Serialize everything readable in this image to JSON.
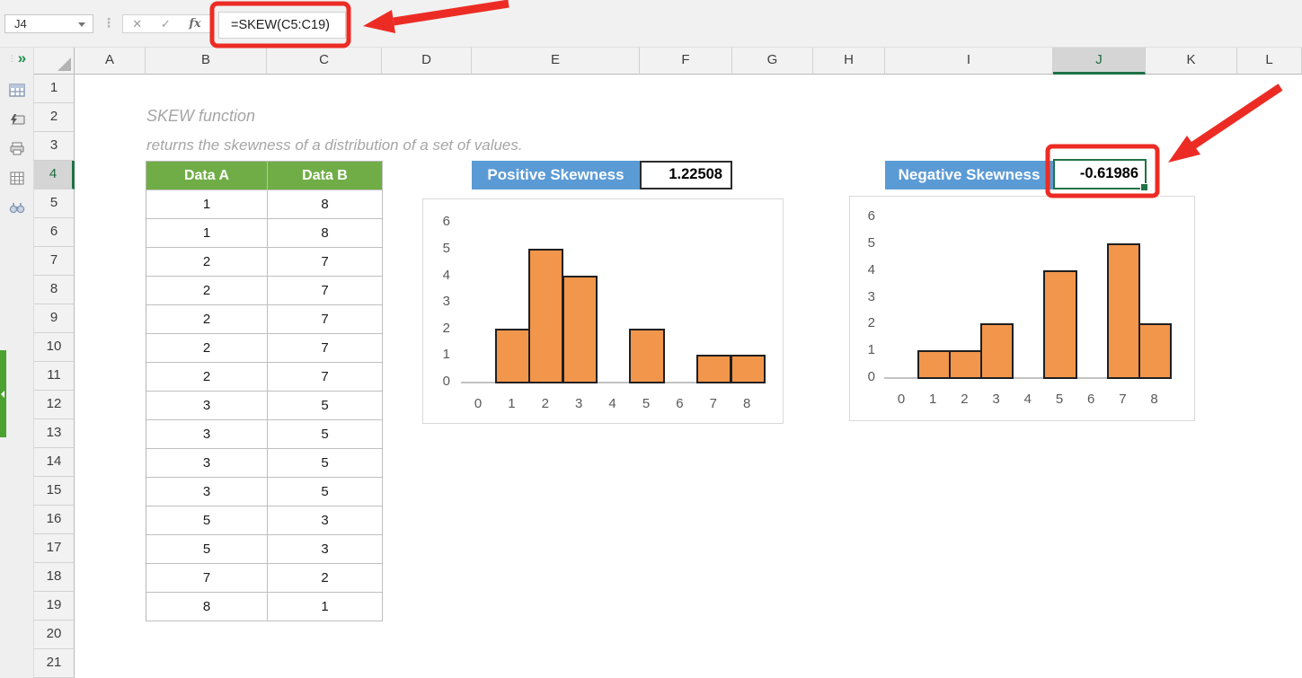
{
  "formula_bar": {
    "name_box_value": "J4",
    "cancel_glyph": "✕",
    "confirm_glyph": "✓",
    "function_glyph": "fx",
    "formula": "=SKEW(C5:C19)"
  },
  "sidebar": {
    "expand_glyph": "»",
    "icons": [
      "table-icon",
      "flash-fill-icon",
      "printer-icon",
      "grid-icon",
      "binoculars-icon"
    ]
  },
  "grid": {
    "column_headers": [
      "A",
      "B",
      "C",
      "D",
      "E",
      "F",
      "G",
      "H",
      "I",
      "J",
      "K",
      "L"
    ],
    "selected_column": "J",
    "row_headers": [
      "1",
      "2",
      "3",
      "4",
      "5",
      "6",
      "7",
      "8",
      "9",
      "10",
      "11",
      "12",
      "13",
      "14",
      "15",
      "16",
      "17",
      "18",
      "19",
      "20",
      "21"
    ],
    "selected_row": "4",
    "selected_cell": "J4"
  },
  "notes": {
    "title": "SKEW function",
    "subtitle": "returns the skewness of a distribution of a set of values."
  },
  "data_table": {
    "headers": [
      "Data A",
      "Data B"
    ],
    "rows": [
      [
        "1",
        "8"
      ],
      [
        "1",
        "8"
      ],
      [
        "2",
        "7"
      ],
      [
        "2",
        "7"
      ],
      [
        "2",
        "7"
      ],
      [
        "2",
        "7"
      ],
      [
        "2",
        "7"
      ],
      [
        "3",
        "5"
      ],
      [
        "3",
        "5"
      ],
      [
        "3",
        "5"
      ],
      [
        "3",
        "5"
      ],
      [
        "5",
        "3"
      ],
      [
        "5",
        "3"
      ],
      [
        "7",
        "2"
      ],
      [
        "8",
        "1"
      ]
    ]
  },
  "results": {
    "positive": {
      "label": "Positive Skewness",
      "value": "1.22508"
    },
    "negative": {
      "label": "Negative Skewness",
      "value": "-0.61986"
    }
  },
  "colors": {
    "header_green": "#70AD47",
    "label_blue": "#5B9BD5",
    "bar_orange": "#F2964B",
    "selection_green": "#217346",
    "annotation_red": "#EC2C24",
    "note_gray": "#A6A6A6"
  },
  "chart_data": [
    {
      "type": "bar",
      "title": "Positive Skewness",
      "x": [
        1,
        2,
        3,
        5,
        7,
        8
      ],
      "values": [
        2,
        5,
        4,
        2,
        1,
        1
      ],
      "x_tick_labels": [
        "0",
        "1",
        "2",
        "3",
        "4",
        "5",
        "6",
        "7",
        "8"
      ],
      "y_tick_labels": [
        "0",
        "1",
        "2",
        "3",
        "4",
        "5",
        "6"
      ],
      "xlim": [
        -0.5,
        8.5
      ],
      "ylim": [
        0,
        6
      ],
      "grid": false,
      "legend": false,
      "bar_color": "#F2964B",
      "bar_border_color": "#1F1F1F"
    },
    {
      "type": "bar",
      "title": "Negative Skewness",
      "x": [
        1,
        2,
        3,
        5,
        7,
        8
      ],
      "values": [
        1,
        1,
        2,
        4,
        5,
        2
      ],
      "x_tick_labels": [
        "0",
        "1",
        "2",
        "3",
        "4",
        "5",
        "6",
        "7",
        "8"
      ],
      "y_tick_labels": [
        "0",
        "1",
        "2",
        "3",
        "4",
        "5",
        "6"
      ],
      "xlim": [
        -0.5,
        8.5
      ],
      "ylim": [
        0,
        6
      ],
      "grid": false,
      "legend": false,
      "bar_color": "#F2964B",
      "bar_border_color": "#1F1F1F"
    }
  ]
}
